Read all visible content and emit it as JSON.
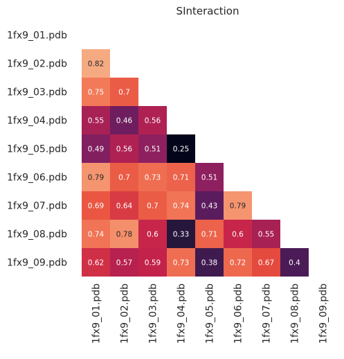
{
  "chart_data": {
    "type": "heatmap",
    "title": "SInteraction",
    "row_labels": [
      "1fx9_01.pdb",
      "1fx9_02.pdb",
      "1fx9_03.pdb",
      "1fx9_04.pdb",
      "1fx9_05.pdb",
      "1fx9_06.pdb",
      "1fx9_07.pdb",
      "1fx9_08.pdb",
      "1fx9_09.pdb"
    ],
    "col_labels": [
      "1fx9_01.pdb",
      "1fx9_02.pdb",
      "1fx9_03.pdb",
      "1fx9_04.pdb",
      "1fx9_05.pdb",
      "1fx9_06.pdb",
      "1fx9_07.pdb",
      "1fx9_08.pdb",
      "1fx9_09.pdb"
    ],
    "mask": "upper-triangle-including-diagonal",
    "values": [
      [
        null,
        null,
        null,
        null,
        null,
        null,
        null,
        null,
        null
      ],
      [
        0.82,
        null,
        null,
        null,
        null,
        null,
        null,
        null,
        null
      ],
      [
        0.75,
        0.7,
        null,
        null,
        null,
        null,
        null,
        null,
        null
      ],
      [
        0.55,
        0.46,
        0.56,
        null,
        null,
        null,
        null,
        null,
        null
      ],
      [
        0.49,
        0.56,
        0.51,
        0.25,
        null,
        null,
        null,
        null,
        null
      ],
      [
        0.79,
        0.7,
        0.73,
        0.71,
        0.51,
        null,
        null,
        null,
        null
      ],
      [
        0.69,
        0.64,
        0.7,
        0.74,
        0.43,
        0.79,
        null,
        null,
        null
      ],
      [
        0.74,
        0.78,
        0.6,
        0.33,
        0.71,
        0.6,
        0.55,
        null,
        null
      ],
      [
        0.62,
        0.57,
        0.59,
        0.73,
        0.38,
        0.72,
        0.67,
        0.4,
        null
      ]
    ],
    "color_scale": "rocket",
    "value_range": [
      0.25,
      0.82
    ],
    "colorbar": false,
    "grid": false
  }
}
